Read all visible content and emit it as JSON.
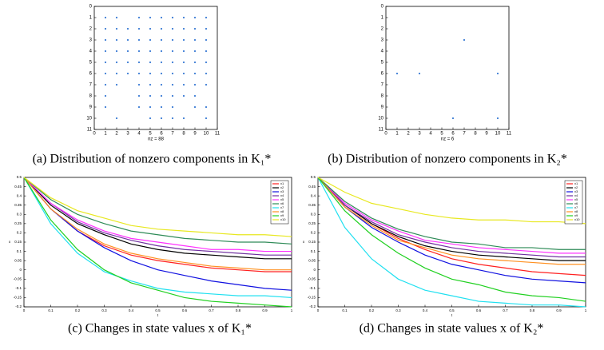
{
  "chart_data": [
    {
      "type": "scatter",
      "caption": "(a) Distribution of nonzero components in K₁*",
      "xlabel": "nz = 88",
      "color": "#3a7bd5",
      "y_inverted": true,
      "x": [
        1,
        2,
        4,
        5,
        6,
        7,
        8,
        9,
        10,
        1,
        2,
        3,
        4,
        5,
        6,
        7,
        8,
        9,
        10,
        1,
        2,
        3,
        4,
        5,
        6,
        7,
        8,
        9,
        10,
        1,
        2,
        3,
        4,
        5,
        6,
        7,
        8,
        9,
        10,
        1,
        2,
        3,
        4,
        5,
        6,
        7,
        8,
        9,
        10,
        1,
        2,
        3,
        4,
        5,
        6,
        7,
        8,
        9,
        10,
        1,
        2,
        4,
        5,
        6,
        7,
        8,
        9,
        10,
        1,
        4,
        5,
        6,
        7,
        8,
        9,
        1,
        4,
        5,
        6,
        7,
        9,
        10,
        2,
        5,
        6,
        7,
        8,
        10
      ],
      "y": [
        1,
        1,
        1,
        1,
        1,
        1,
        1,
        1,
        1,
        2,
        2,
        2,
        2,
        2,
        2,
        2,
        2,
        2,
        2,
        3,
        3,
        3,
        3,
        3,
        3,
        3,
        3,
        3,
        3,
        4,
        4,
        4,
        4,
        4,
        4,
        4,
        4,
        4,
        4,
        5,
        5,
        5,
        5,
        5,
        5,
        5,
        5,
        5,
        5,
        6,
        6,
        6,
        6,
        6,
        6,
        6,
        6,
        6,
        6,
        7,
        7,
        7,
        7,
        7,
        7,
        7,
        7,
        7,
        8,
        8,
        8,
        8,
        8,
        8,
        8,
        9,
        9,
        9,
        9,
        9,
        9,
        9,
        10,
        10,
        10,
        10,
        10,
        10
      ],
      "xlim": [
        0,
        11
      ],
      "ylim": [
        0,
        11
      ],
      "xticks": [
        0,
        1,
        2,
        3,
        4,
        5,
        6,
        7,
        8,
        9,
        10,
        11
      ],
      "yticks": [
        0,
        1,
        2,
        3,
        4,
        5,
        6,
        7,
        8,
        9,
        10,
        11
      ]
    },
    {
      "type": "scatter",
      "caption": "(b) Distribution of nonzero components in K₂*",
      "xlabel": "nz = 6",
      "color": "#3a7bd5",
      "y_inverted": true,
      "x": [
        7,
        1,
        3,
        10,
        6,
        10
      ],
      "y": [
        3,
        6,
        6,
        6,
        10,
        10
      ],
      "xlim": [
        0,
        11
      ],
      "ylim": [
        0,
        11
      ],
      "xticks": [
        0,
        1,
        2,
        3,
        4,
        5,
        6,
        7,
        8,
        9,
        10,
        11
      ],
      "yticks": [
        0,
        1,
        2,
        3,
        4,
        5,
        6,
        7,
        8,
        9,
        10,
        11
      ]
    },
    {
      "type": "line",
      "caption": "(c) Changes in state values x of K₁*",
      "xlabel": "t",
      "ylabel": "x",
      "legend": "upper right",
      "x": [
        0,
        0.1,
        0.2,
        0.3,
        0.4,
        0.5,
        0.6,
        0.7,
        0.8,
        0.9,
        1
      ],
      "xlim": [
        0,
        1
      ],
      "ylim": [
        -0.2,
        0.5
      ],
      "xticks": [
        0,
        0.1,
        0.2,
        0.3,
        0.4,
        0.5,
        0.6,
        0.7,
        0.8,
        0.9,
        1
      ],
      "yticks": [
        -0.2,
        -0.15,
        -0.1,
        -0.05,
        0,
        0.05,
        0.1,
        0.15,
        0.2,
        0.25,
        0.3,
        0.35,
        0.4,
        0.45,
        0.5
      ],
      "series": [
        {
          "name": "x1",
          "color": "#ff2020",
          "values": [
            0.5,
            0.33,
            0.21,
            0.13,
            0.08,
            0.05,
            0.03,
            0.01,
            0,
            -0.01,
            -0.01
          ]
        },
        {
          "name": "x2",
          "color": "#000000",
          "values": [
            0.5,
            0.35,
            0.25,
            0.19,
            0.14,
            0.11,
            0.09,
            0.08,
            0.07,
            0.06,
            0.06
          ]
        },
        {
          "name": "x3",
          "color": "#1010e0",
          "values": [
            0.5,
            0.33,
            0.21,
            0.12,
            0.05,
            0,
            -0.03,
            -0.06,
            -0.08,
            -0.1,
            -0.11
          ]
        },
        {
          "name": "x4",
          "color": "#7030a0",
          "values": [
            0.5,
            0.36,
            0.26,
            0.2,
            0.16,
            0.13,
            0.11,
            0.1,
            0.09,
            0.08,
            0.08
          ]
        },
        {
          "name": "x5",
          "color": "#ff30ff",
          "values": [
            0.5,
            0.36,
            0.27,
            0.21,
            0.17,
            0.15,
            0.13,
            0.11,
            0.11,
            0.1,
            0.1
          ]
        },
        {
          "name": "x6",
          "color": "#2e8b57",
          "values": [
            0.5,
            0.38,
            0.3,
            0.25,
            0.21,
            0.19,
            0.17,
            0.16,
            0.15,
            0.15,
            0.14
          ]
        },
        {
          "name": "x7",
          "color": "#20e0f0",
          "values": [
            0.5,
            0.25,
            0.09,
            -0.01,
            -0.06,
            -0.1,
            -0.12,
            -0.13,
            -0.14,
            -0.14,
            -0.15
          ]
        },
        {
          "name": "x8",
          "color": "#ff9020",
          "values": [
            0.5,
            0.33,
            0.22,
            0.14,
            0.09,
            0.06,
            0.04,
            0.02,
            0.01,
            0,
            0
          ]
        },
        {
          "name": "x9",
          "color": "#20d020",
          "values": [
            0.5,
            0.27,
            0.11,
            0,
            -0.07,
            -0.11,
            -0.15,
            -0.17,
            -0.18,
            -0.19,
            -0.2
          ]
        },
        {
          "name": "x10",
          "color": "#e8e820",
          "values": [
            0.5,
            0.39,
            0.32,
            0.28,
            0.24,
            0.22,
            0.21,
            0.2,
            0.19,
            0.19,
            0.18
          ]
        }
      ]
    },
    {
      "type": "line",
      "caption": "(d) Changes in state values x of K₂*",
      "xlabel": "t",
      "ylabel": "x",
      "legend": "upper right",
      "x": [
        0,
        0.1,
        0.2,
        0.3,
        0.4,
        0.5,
        0.6,
        0.7,
        0.8,
        0.9,
        1
      ],
      "xlim": [
        0,
        1
      ],
      "ylim": [
        -0.2,
        0.5
      ],
      "xticks": [
        0,
        0.1,
        0.2,
        0.3,
        0.4,
        0.5,
        0.6,
        0.7,
        0.8,
        0.9,
        1
      ],
      "yticks": [
        -0.2,
        -0.15,
        -0.1,
        -0.05,
        0,
        0.05,
        0.1,
        0.15,
        0.2,
        0.25,
        0.3,
        0.35,
        0.4,
        0.45,
        0.5
      ],
      "series": [
        {
          "name": "x1",
          "color": "#ff2020",
          "values": [
            0.5,
            0.35,
            0.25,
            0.17,
            0.11,
            0.06,
            0.03,
            0.01,
            -0.01,
            -0.02,
            -0.03
          ]
        },
        {
          "name": "x2",
          "color": "#000000",
          "values": [
            0.5,
            0.35,
            0.25,
            0.18,
            0.13,
            0.1,
            0.08,
            0.07,
            0.06,
            0.05,
            0.05
          ]
        },
        {
          "name": "x3",
          "color": "#1010e0",
          "values": [
            0.5,
            0.34,
            0.23,
            0.15,
            0.08,
            0.03,
            0,
            -0.03,
            -0.05,
            -0.06,
            -0.07
          ]
        },
        {
          "name": "x4",
          "color": "#7030a0",
          "values": [
            0.5,
            0.35,
            0.26,
            0.19,
            0.15,
            0.12,
            0.1,
            0.09,
            0.08,
            0.07,
            0.07
          ]
        },
        {
          "name": "x5",
          "color": "#ff30ff",
          "values": [
            0.5,
            0.36,
            0.27,
            0.21,
            0.16,
            0.14,
            0.12,
            0.11,
            0.1,
            0.09,
            0.09
          ]
        },
        {
          "name": "x6",
          "color": "#2e8b57",
          "values": [
            0.5,
            0.37,
            0.28,
            0.22,
            0.18,
            0.15,
            0.14,
            0.12,
            0.12,
            0.11,
            0.11
          ]
        },
        {
          "name": "x7",
          "color": "#20e0f0",
          "values": [
            0.5,
            0.23,
            0.06,
            -0.05,
            -0.11,
            -0.14,
            -0.17,
            -0.18,
            -0.19,
            -0.19,
            -0.2
          ]
        },
        {
          "name": "x8",
          "color": "#ff9020",
          "values": [
            0.5,
            0.34,
            0.24,
            0.16,
            0.12,
            0.08,
            0.06,
            0.05,
            0.04,
            0.03,
            0.03
          ]
        },
        {
          "name": "x9",
          "color": "#20d020",
          "values": [
            0.5,
            0.32,
            0.19,
            0.09,
            0.01,
            -0.05,
            -0.08,
            -0.12,
            -0.14,
            -0.15,
            -0.17
          ]
        },
        {
          "name": "x10",
          "color": "#e8e820",
          "values": [
            0.5,
            0.42,
            0.36,
            0.33,
            0.3,
            0.28,
            0.27,
            0.27,
            0.26,
            0.26,
            0.25
          ]
        }
      ]
    }
  ]
}
